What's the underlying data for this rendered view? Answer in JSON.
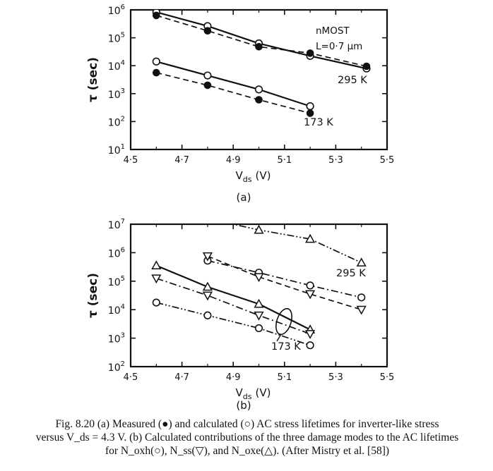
{
  "chart_data": [
    {
      "type": "line",
      "panel_label": "(a)",
      "xlabel_main": "V",
      "xlabel_sub": "ds",
      "xlabel_unit": "(V)",
      "ylabel": "τ (sec)",
      "x_ticks": [
        "4·5",
        "4·7",
        "4·9",
        "5·1",
        "5·3",
        "5·5"
      ],
      "x_tick_values": [
        4.5,
        4.7,
        4.9,
        5.1,
        5.3,
        5.5
      ],
      "y_ticks_exp": [
        1,
        2,
        3,
        4,
        5,
        6
      ],
      "xlim": [
        4.5,
        5.5
      ],
      "ylim_log10": [
        1,
        6
      ],
      "annotation_lines": [
        "nMOST",
        "L=0·7 μm"
      ],
      "series": [
        {
          "name": "295 K",
          "marker": "open-circle",
          "line": "solid",
          "x": [
            4.6,
            4.8,
            5.0,
            5.2,
            5.42
          ],
          "y_log10": [
            5.92,
            5.42,
            4.8,
            4.35,
            3.9
          ]
        },
        {
          "marker": "filled-circle",
          "line": "dashed",
          "x": [
            4.6,
            4.8,
            5.0,
            5.2,
            5.42
          ],
          "y_log10": [
            5.8,
            5.25,
            4.68,
            4.45,
            3.98
          ]
        },
        {
          "name": "173 K",
          "marker": "open-circle",
          "line": "solid",
          "x": [
            4.6,
            4.8,
            5.0,
            5.2
          ],
          "y_log10": [
            4.15,
            3.65,
            3.15,
            2.55
          ]
        },
        {
          "marker": "filled-circle",
          "line": "dashed",
          "x": [
            4.6,
            4.8,
            5.0,
            5.2
          ],
          "y_log10": [
            3.75,
            3.3,
            2.78,
            2.3
          ]
        }
      ],
      "series_labels": [
        "295 K",
        "173 K"
      ]
    },
    {
      "type": "line",
      "panel_label": "(b)",
      "xlabel_main": "V",
      "xlabel_sub": "ds",
      "xlabel_unit": "(V)",
      "ylabel": "τ (sec)",
      "x_ticks": [
        "4·5",
        "4·7",
        "4·9",
        "5·1",
        "5·3",
        "5·5"
      ],
      "x_tick_values": [
        4.5,
        4.7,
        4.9,
        5.1,
        5.3,
        5.5
      ],
      "y_ticks_exp": [
        2,
        3,
        4,
        5,
        6,
        7
      ],
      "xlim": [
        4.5,
        5.5
      ],
      "ylim_log10": [
        2,
        7
      ],
      "series": [
        {
          "marker": "open-triangle",
          "line": "dash-dot-dot",
          "x": [
            4.8,
            5.0,
            5.2,
            5.4
          ],
          "y_log10": [
            7.2,
            6.8,
            6.48,
            5.65
          ]
        },
        {
          "marker": "open-circle",
          "line": "dash-dot",
          "x": [
            4.8,
            5.0,
            5.2,
            5.4
          ],
          "y_log10": [
            5.72,
            5.3,
            4.85,
            4.43
          ]
        },
        {
          "marker": "open-triangle-down",
          "line": "dashed",
          "x": [
            4.8,
            5.0,
            5.2,
            5.4
          ],
          "y_log10": [
            5.88,
            5.15,
            4.55,
            4.0
          ]
        },
        {
          "marker": "open-triangle",
          "line": "solid",
          "x": [
            4.6,
            4.8,
            5.0,
            5.2
          ],
          "y_log10": [
            5.55,
            4.8,
            4.2,
            3.3
          ]
        },
        {
          "marker": "open-triangle-down",
          "line": "dash-dot",
          "x": [
            4.6,
            4.8,
            5.0,
            5.2
          ],
          "y_log10": [
            5.1,
            4.5,
            3.8,
            3.15
          ]
        },
        {
          "marker": "open-circle",
          "line": "dash-dot-dot",
          "x": [
            4.6,
            4.8,
            5.0,
            5.2
          ],
          "y_log10": [
            4.25,
            3.8,
            3.35,
            2.75
          ]
        }
      ],
      "series_labels": [
        "295 K",
        "173 K"
      ]
    }
  ],
  "caption_lines": [
    "Fig. 8.20 (a) Measured (●) and calculated (○) AC stress lifetimes for inverter-like stress",
    "versus V_ds = 4.3 V. (b) Calculated contributions of the three damage modes to the AC lifetimes",
    "for N_oxh(○), N_ss(▽), and N_oxe(△). (After Mistry et al. [58])"
  ]
}
